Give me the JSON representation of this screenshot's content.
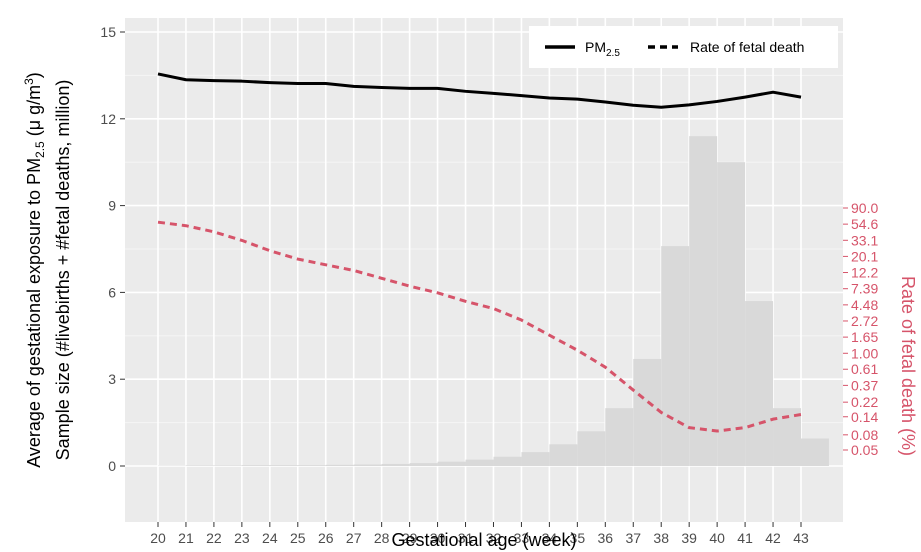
{
  "chart_data": {
    "type": "bar+line",
    "xlabel": "Gestational age (week)",
    "ylabel_line1_prefix": "Average of gestational exposure to PM",
    "ylabel_line1_sub": "2.5",
    "ylabel_line1_unit_prefix": " (μ g/m",
    "ylabel_line1_unit_sup": "3",
    "ylabel_line1_unit_suffix": ")",
    "ylabel_line2": "Sample size (#livebirths + #fetal deaths, million)",
    "y2label": "Rate of fetal death (%)",
    "ylim": [
      0,
      15
    ],
    "y_ticks": [
      "0",
      "3",
      "6",
      "9",
      "12",
      "15"
    ],
    "y2_tick_labels": [
      "0.05",
      "0.08",
      "0.14",
      "0.22",
      "0.37",
      "0.61",
      "1.00",
      "1.65",
      "2.72",
      "4.48",
      "7.39",
      "12.2",
      "20.1",
      "33.1",
      "54.6",
      "90.0"
    ],
    "y2_tick_values": [
      0.05,
      0.08,
      0.14,
      0.22,
      0.37,
      0.61,
      1.0,
      1.65,
      2.72,
      4.48,
      7.39,
      12.2,
      20.1,
      33.1,
      54.6,
      90.0
    ],
    "categories": [
      "20",
      "21",
      "22",
      "23",
      "24",
      "25",
      "26",
      "27",
      "28",
      "29",
      "30",
      "31",
      "32",
      "33",
      "34",
      "35",
      "36",
      "37",
      "38",
      "39",
      "40",
      "41",
      "42",
      "43"
    ],
    "sample_size_bars": [
      0.01,
      0.02,
      0.02,
      0.03,
      0.03,
      0.03,
      0.04,
      0.05,
      0.07,
      0.1,
      0.15,
      0.22,
      0.32,
      0.48,
      0.75,
      1.2,
      2.0,
      3.7,
      7.6,
      11.4,
      10.5,
      5.7,
      2.0,
      0.95
    ],
    "series": [
      {
        "name": "PM2.5",
        "style": "solid",
        "color": "#000000",
        "values": [
          13.55,
          13.35,
          13.32,
          13.3,
          13.25,
          13.22,
          13.22,
          13.12,
          13.08,
          13.05,
          13.05,
          12.95,
          12.88,
          12.8,
          12.72,
          12.68,
          12.58,
          12.47,
          12.4,
          12.48,
          12.6,
          12.75,
          12.92,
          12.75
        ]
      },
      {
        "name": "Rate of fetal death",
        "style": "dashed",
        "color": "#d6546a",
        "values": [
          58.0,
          52.0,
          43.0,
          33.0,
          24.0,
          18.5,
          15.5,
          13.0,
          10.2,
          8.0,
          6.5,
          5.0,
          4.0,
          2.8,
          1.75,
          1.1,
          0.65,
          0.32,
          0.16,
          0.1,
          0.09,
          0.1,
          0.13,
          0.15
        ]
      }
    ],
    "legend": [
      {
        "label_main": "PM",
        "label_sub": "2.5",
        "style": "solid"
      },
      {
        "label_main": "Rate of fetal death",
        "label_sub": "",
        "style": "dashed"
      }
    ],
    "legend_position": "top-right",
    "grid": true,
    "colors": {
      "panel_bg": "#ebebeb",
      "grid": "#ffffff",
      "bar": "#d9d9d9",
      "pm": "#000000",
      "rate": "#d6546a"
    }
  }
}
